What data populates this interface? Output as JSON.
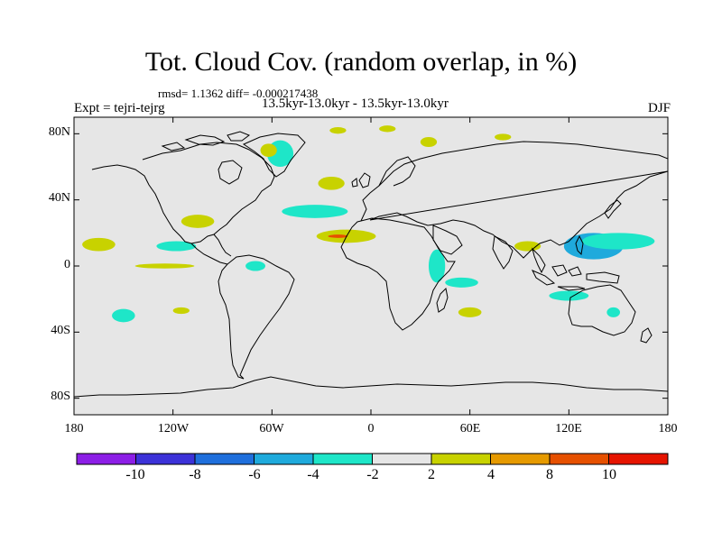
{
  "header": {
    "title": "Tot. Cloud Cov. (random overlap, in %)",
    "stats": "rmsd= 1.1362 diff= -0.000217438",
    "subtitle": "13.5kyr-13.0kyr - 13.5kyr-13.0kyr",
    "experiment": "Expt = tejri-tejrg",
    "season": "DJF"
  },
  "map": {
    "type": "contour-difference-map",
    "projection": "cylindrical-equidistant",
    "lon_range": [
      -180,
      180
    ],
    "lat_range": [
      -90,
      90
    ],
    "x_tick_labels": [
      "180",
      "120W",
      "60W",
      "0",
      "60E",
      "120E",
      "180"
    ],
    "x_tick_lons": [
      -180,
      -120,
      -60,
      0,
      60,
      120,
      180
    ],
    "y_tick_labels": [
      "80N",
      "40N",
      "0",
      "40S",
      "80S"
    ],
    "y_tick_lats": [
      80,
      40,
      0,
      -40,
      -80
    ],
    "background_color": "#e6e6e6",
    "coast_color": "#000000",
    "anomalies": [
      {
        "name": "atlantic-north-neg",
        "lon": -34,
        "lat": 33,
        "rlon": 20,
        "rlat": 4,
        "level": "-4..-2"
      },
      {
        "name": "atlantic-north-pos",
        "lon": -24,
        "lat": 50,
        "rlon": 8,
        "rlat": 4,
        "level": "2..4"
      },
      {
        "name": "greenland-neg",
        "lon": -55,
        "lat": 68,
        "rlon": 8,
        "rlat": 8,
        "level": "-4..-2"
      },
      {
        "name": "labrador-pos",
        "lon": -62,
        "lat": 70,
        "rlon": 5,
        "rlat": 4,
        "level": "2..4"
      },
      {
        "name": "arctic-pos-1",
        "lon": -20,
        "lat": 82,
        "rlon": 5,
        "rlat": 2,
        "level": "2..4"
      },
      {
        "name": "arctic-pos-2",
        "lon": 10,
        "lat": 83,
        "rlon": 5,
        "rlat": 2,
        "level": "2..4"
      },
      {
        "name": "siberia-pos-1",
        "lon": 35,
        "lat": 75,
        "rlon": 5,
        "rlat": 3,
        "level": "2..4"
      },
      {
        "name": "siberia-pos-2",
        "lon": 80,
        "lat": 78,
        "rlon": 5,
        "rlat": 2,
        "level": "2..4"
      },
      {
        "name": "sahara-pos",
        "lon": -15,
        "lat": 18,
        "rlon": 18,
        "rlat": 4,
        "level": "2..4"
      },
      {
        "name": "sahara-peak",
        "lon": -20,
        "lat": 18,
        "rlon": 6,
        "rlat": 1,
        "level": "8..10"
      },
      {
        "name": "pacific-n-pos",
        "lon": -165,
        "lat": 13,
        "rlon": 10,
        "rlat": 4,
        "level": "2..4"
      },
      {
        "name": "pacific-c-neg",
        "lon": -118,
        "lat": 12,
        "rlon": 12,
        "rlat": 3,
        "level": "-4..-2"
      },
      {
        "name": "mexico-pos",
        "lon": -105,
        "lat": 27,
        "rlon": 10,
        "rlat": 4,
        "level": "2..4"
      },
      {
        "name": "equator-pos",
        "lon": -125,
        "lat": 0,
        "rlon": 18,
        "rlat": 1.5,
        "level": "2..4"
      },
      {
        "name": "caribbean-neg",
        "lon": -70,
        "lat": 0,
        "rlon": 6,
        "rlat": 3,
        "level": "-4..-2"
      },
      {
        "name": "east-pacific-neg",
        "lon": -150,
        "lat": -30,
        "rlon": 7,
        "rlat": 4,
        "level": "-4..-2"
      },
      {
        "name": "east-africa-neg",
        "lon": 40,
        "lat": 0,
        "rlon": 5,
        "rlat": 10,
        "level": "-4..-2"
      },
      {
        "name": "indian-neg",
        "lon": 55,
        "lat": -10,
        "rlon": 10,
        "rlat": 3,
        "level": "-4..-2"
      },
      {
        "name": "mozambique-pos",
        "lon": 60,
        "lat": -28,
        "rlon": 7,
        "rlat": 3,
        "level": "2..4"
      },
      {
        "name": "india-pos",
        "lon": 95,
        "lat": 12,
        "rlon": 8,
        "rlat": 3,
        "level": "2..4"
      },
      {
        "name": "west-pacific-neg",
        "lon": 135,
        "lat": 12,
        "rlon": 18,
        "rlat": 8,
        "level": "-6..-4"
      },
      {
        "name": "west-pacific-edge",
        "lon": 150,
        "lat": 15,
        "rlon": 22,
        "rlat": 5,
        "level": "-4..-2"
      },
      {
        "name": "maritime-neg",
        "lon": 120,
        "lat": -18,
        "rlon": 12,
        "rlat": 3,
        "level": "-4..-2"
      },
      {
        "name": "australia-neg",
        "lon": 147,
        "lat": -28,
        "rlon": 4,
        "rlat": 3,
        "level": "-4..-2"
      },
      {
        "name": "south-atlantic-pos",
        "lon": -115,
        "lat": -27,
        "rlon": 5,
        "rlat": 2,
        "level": "2..4"
      }
    ]
  },
  "colorbar": {
    "levels": [
      "-10",
      "-8",
      "-6",
      "-4",
      "-2",
      "2",
      "4",
      "8",
      "10"
    ],
    "colors": [
      "#8c1ee6",
      "#3c32d8",
      "#1f6fdc",
      "#1faadc",
      "#1ee6c8",
      "#e6e6e6",
      "#c8d200",
      "#e69a00",
      "#e65000",
      "#e61400"
    ],
    "level_colors": {
      "-6..-4": "#1faadc",
      "-4..-2": "#1ee6c8",
      "2..4": "#c8d200",
      "4..8": "#e69a00",
      "8..10": "#e65000"
    }
  }
}
